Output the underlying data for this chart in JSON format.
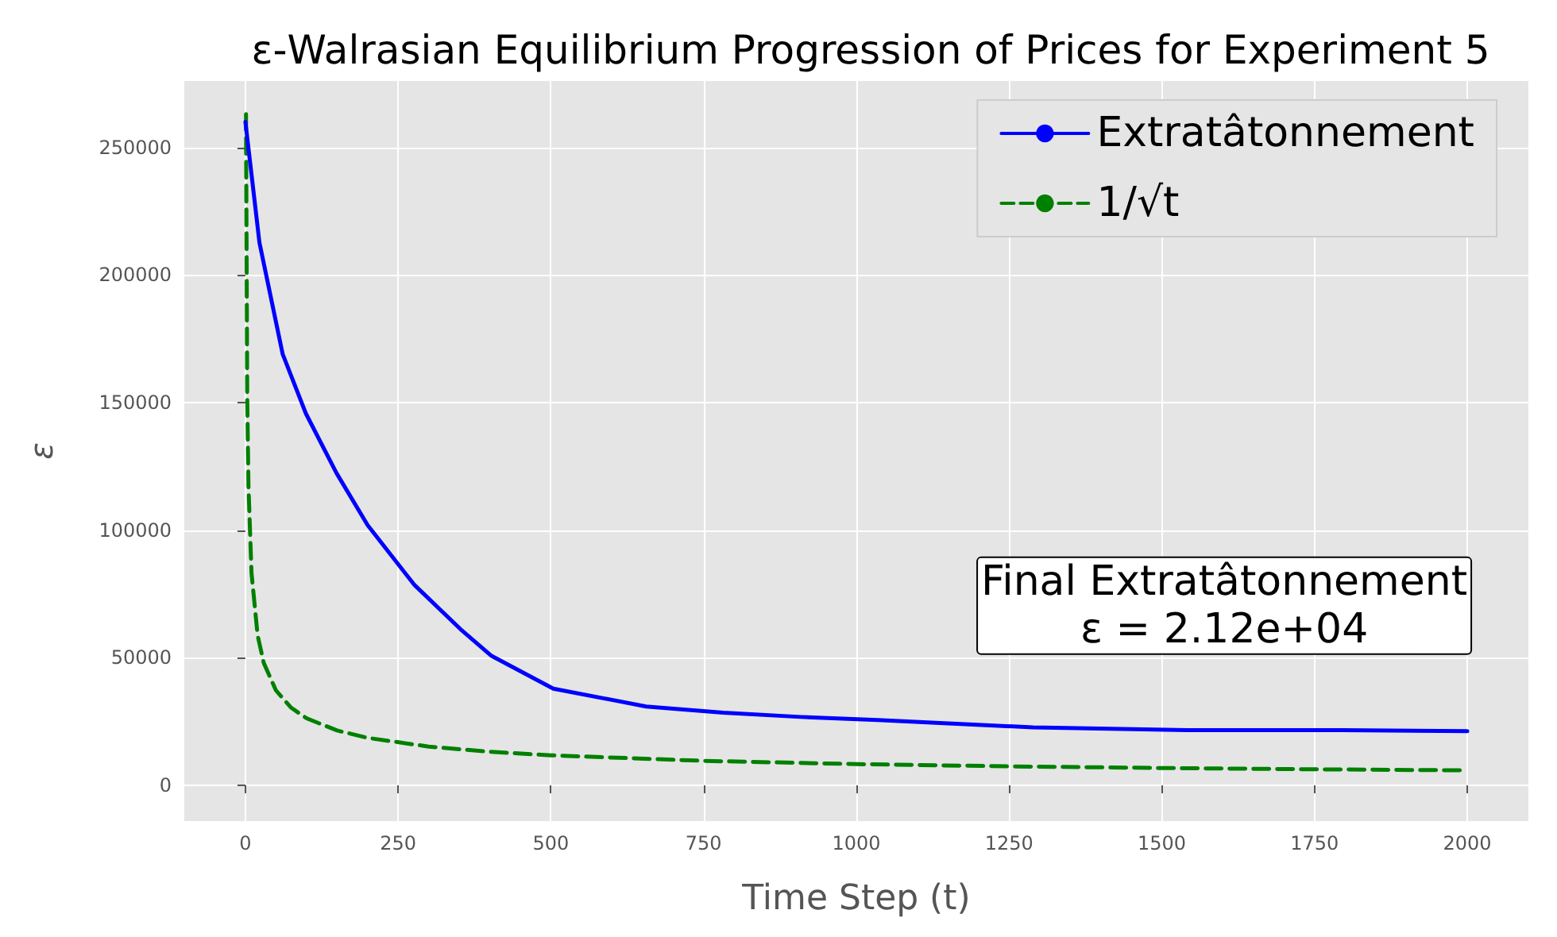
{
  "chart_data": {
    "type": "line",
    "title": "ε-Walrasian Equilibrium Progression of Prices for Experiment 5",
    "xlabel": "Time Step (t)",
    "ylabel": "ε",
    "xlim": [
      -100,
      2100
    ],
    "xticks": [
      0,
      250,
      500,
      750,
      1000,
      1250,
      1500,
      1750,
      2000
    ],
    "ylim": [
      -14000,
      276000
    ],
    "yticks": [
      0,
      50000,
      100000,
      150000,
      200000,
      250000
    ],
    "grid": true,
    "legend": "top right",
    "marker": "none",
    "series": [
      {
        "name": "Extratâtonnement",
        "color": "#0000ff",
        "line_style": "solid",
        "x": [
          0,
          23,
          61,
          99,
          149,
          200,
          276,
          352,
          403,
          504,
          656,
          782,
          909,
          1035,
          1289,
          1542,
          1795,
          2000
        ],
        "values": [
          260000,
          212700,
          169000,
          145700,
          122400,
          102000,
          78700,
          61200,
          50700,
          37900,
          30900,
          28500,
          26800,
          25600,
          22700,
          21600,
          21600,
          21200
        ]
      },
      {
        "name": "1/√t",
        "color": "#008000",
        "line_style": "dashed",
        "x": [
          1,
          3,
          5,
          10,
          20,
          30,
          50,
          75,
          100,
          150,
          200,
          300,
          400,
          500,
          750,
          1000,
          1250,
          1500,
          1750,
          2000
        ],
        "values": [
          263000,
          151800,
          117600,
          83200,
          58800,
          48000,
          37200,
          30400,
          26300,
          21500,
          18600,
          15200,
          13150,
          11760,
          9600,
          8320,
          7440,
          6790,
          6290,
          5880
        ]
      }
    ],
    "annotations": [
      {
        "text": "Final Extratâtonnement\nε = 2.12e+04",
        "x": 2000,
        "y": 21200
      }
    ]
  }
}
